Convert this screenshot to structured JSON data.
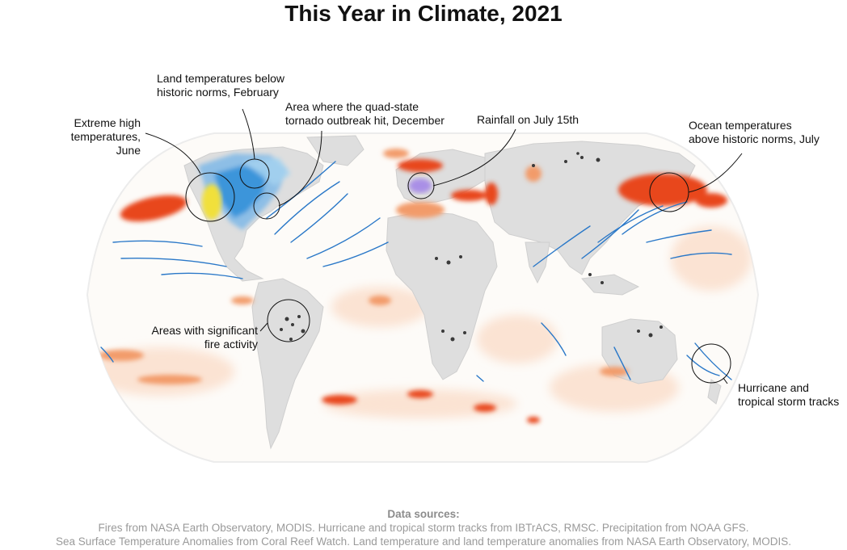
{
  "title": "This Year in Climate, 2021",
  "colors": {
    "ocean_warm": "#e8461c",
    "ocean_warm_light": "#f6b08a",
    "land_cold": "#2f8fd8",
    "land_cold_light": "#a8d4f0",
    "land_hot": "#f1e03a",
    "storm_tracks": "#2a78c8",
    "rainfall": "#a98fe6",
    "fire": "#2b2b2b",
    "land_base": "#dcdcdc"
  },
  "annotations": {
    "extreme_heat": [
      "Extreme high",
      "temperatures, June"
    ],
    "land_cold": [
      "Land temperatures below",
      "historic norms, February"
    ],
    "tornado": [
      "Area where the quad-state",
      "tornado outbreak hit, December"
    ],
    "rainfall": [
      "Rainfall on July 15th"
    ],
    "ocean_warm": [
      "Ocean temperatures",
      "above historic norms, July"
    ],
    "fires": [
      "Areas with significant",
      "fire activity"
    ],
    "hurricanes": [
      "Hurricane and",
      "tropical storm tracks"
    ]
  },
  "sources": {
    "heading": "Data sources:",
    "line1": "Fires from NASA Earth Observatory, MODIS. Hurricane and tropical storm tracks from IBTrACS, RMSC. Precipitation from NOAA GFS.",
    "line2": "Sea Surface Temperature Anomalies from Coral Reef Watch. Land temperature and land temperature anomalies from NASA Earth Observatory, MODIS."
  }
}
